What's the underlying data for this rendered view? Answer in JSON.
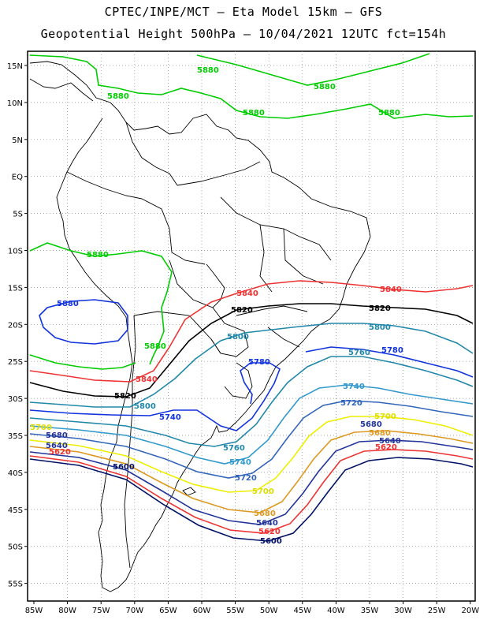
{
  "header": {
    "title_line1": "CPTEC/INPE/MCT –  Eta Model 15km – GFS",
    "title_line2": "Geopotential Height 500hPa – 10/04/2021 12UTC fct=154h"
  },
  "map": {
    "lon_ticks": [
      "85W",
      "80W",
      "75W",
      "70W",
      "65W",
      "60W",
      "55W",
      "50W",
      "45W",
      "40W",
      "35W",
      "30W",
      "25W",
      "20W"
    ],
    "lat_ticks": [
      "15N",
      "10N",
      "5N",
      "EQ",
      "5S",
      "10S",
      "15S",
      "20S",
      "25S",
      "30S",
      "35S",
      "40S",
      "45S",
      "50S",
      "55S"
    ],
    "grid": "dotted",
    "colors": {
      "c5880": "#00cc00",
      "c5840": "#ee3333",
      "c5820": "#000000",
      "c5800": "#2288aa",
      "c5780": "#1133dd",
      "c5760": "#2288aa",
      "c5740": "#3399cc",
      "c5720": "#3366bb",
      "c5700": "#eeee00",
      "c5680": "#dd9922",
      "c5640": "#223399",
      "c5620": "#ee3333",
      "c5600": "#001166",
      "c5880_high": "#1133dd",
      "border": "#000000"
    },
    "contour_labels": {
      "5880": "5880",
      "5840": "5840",
      "5820": "5820",
      "5800": "5800",
      "5780": "5780",
      "5760": "5760",
      "5740": "5740",
      "5720": "5720",
      "5700": "5700",
      "5680": "5680",
      "5640": "5640",
      "5620": "5620",
      "5600": "5600"
    }
  }
}
